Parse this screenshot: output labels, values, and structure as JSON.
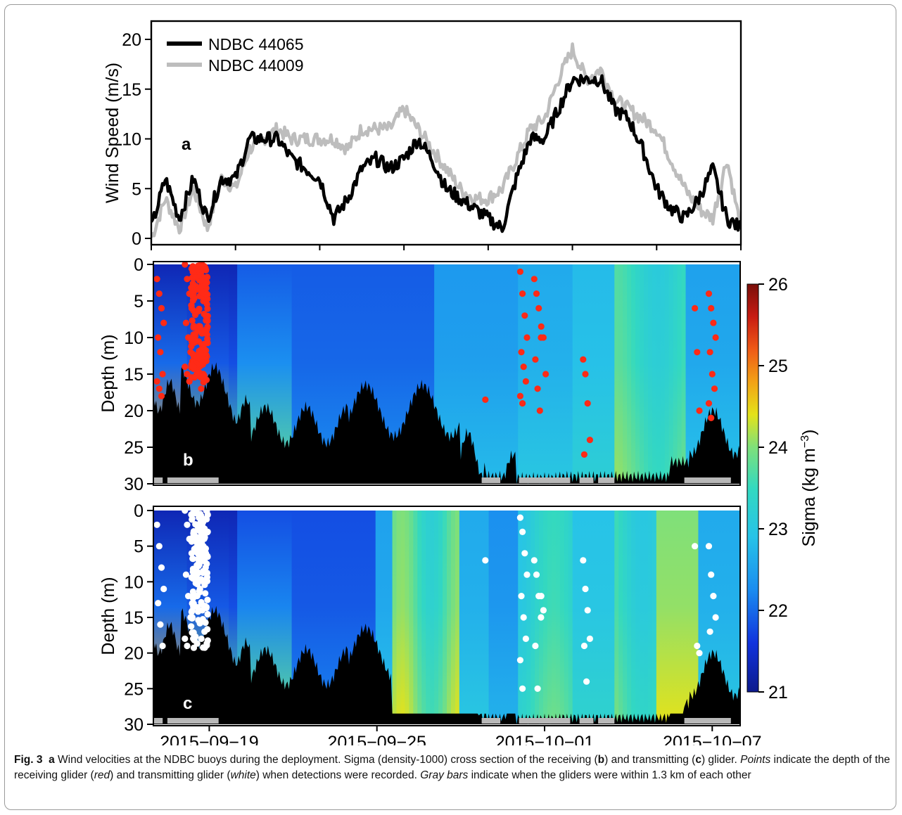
{
  "chart_data": [
    {
      "type": "line",
      "panel_label": "a",
      "ylabel": "Wind Speed (m/s)",
      "ylim": [
        0,
        21
      ],
      "yticks": [
        0,
        5,
        10,
        15,
        20
      ],
      "xlim": [
        "2015-09-17",
        "2015-10-08"
      ],
      "series": [
        {
          "name": "NDBC 44065",
          "color": "#000000",
          "x": [
            "2015-09-17",
            "2015-09-17T12",
            "2015-09-18",
            "2015-09-18T12",
            "2015-09-19",
            "2015-09-19T12",
            "2015-09-20",
            "2015-09-20T12",
            "2015-09-21",
            "2015-09-21T12",
            "2015-09-22",
            "2015-09-22T12",
            "2015-09-23",
            "2015-09-23T12",
            "2015-09-24",
            "2015-09-24T12",
            "2015-09-25",
            "2015-09-25T12",
            "2015-09-26",
            "2015-09-26T12",
            "2015-09-27",
            "2015-09-27T12",
            "2015-09-28",
            "2015-09-28T12",
            "2015-09-29",
            "2015-09-29T12",
            "2015-09-30",
            "2015-09-30T12",
            "2015-10-01",
            "2015-10-01T12",
            "2015-10-02",
            "2015-10-02T12",
            "2015-10-03",
            "2015-10-03T12",
            "2015-10-04",
            "2015-10-04T12",
            "2015-10-05",
            "2015-10-05T12",
            "2015-10-06",
            "2015-10-06T12",
            "2015-10-07",
            "2015-10-07T12",
            "2015-10-08"
          ],
          "values": [
            1,
            6,
            2,
            6,
            2,
            6,
            6,
            10,
            10,
            10,
            8,
            7,
            6,
            2,
            4,
            7,
            8,
            7,
            8,
            10,
            8,
            5,
            4,
            3,
            2,
            1,
            6,
            10,
            10,
            13,
            16,
            16,
            16,
            13,
            12,
            9,
            5,
            3,
            2,
            4,
            7,
            2,
            1
          ]
        },
        {
          "name": "NDBC 44009",
          "color": "#bdbdbd",
          "x": [
            "2015-09-17",
            "2015-09-17T12",
            "2015-09-18",
            "2015-09-18T12",
            "2015-09-19",
            "2015-09-19T12",
            "2015-09-20",
            "2015-09-20T12",
            "2015-09-21",
            "2015-09-21T12",
            "2015-09-22",
            "2015-09-22T12",
            "2015-09-23",
            "2015-09-23T12",
            "2015-09-24",
            "2015-09-24T12",
            "2015-09-25",
            "2015-09-25T12",
            "2015-09-26",
            "2015-09-26T12",
            "2015-09-27",
            "2015-09-27T12",
            "2015-09-28",
            "2015-09-28T12",
            "2015-09-29",
            "2015-09-29T12",
            "2015-09-30",
            "2015-09-30T12",
            "2015-10-01",
            "2015-10-01T12",
            "2015-10-02",
            "2015-10-02T12",
            "2015-10-03",
            "2015-10-03T12",
            "2015-10-04",
            "2015-10-04T12",
            "2015-10-05",
            "2015-10-05T12",
            "2015-10-06",
            "2015-10-06T12",
            "2015-10-07",
            "2015-10-07T12",
            "2015-10-08"
          ],
          "values": [
            0,
            4,
            1,
            5,
            1,
            6,
            5,
            9,
            10,
            11,
            10,
            10,
            10,
            10,
            9,
            11,
            11,
            11,
            13,
            11,
            9,
            7,
            5,
            4,
            4,
            5,
            8,
            11,
            12,
            16,
            19,
            16,
            17,
            14,
            13,
            12,
            11,
            8,
            5,
            3,
            2,
            8,
            1
          ]
        }
      ]
    },
    {
      "type": "heatmap",
      "panel_label": "b",
      "ylabel": "Depth (m)",
      "ylim": [
        30,
        0
      ],
      "yticks": [
        0,
        5,
        10,
        15,
        20,
        25,
        30
      ],
      "xlim": [
        "2015-09-17",
        "2015-10-08"
      ],
      "colorbar": {
        "label": "Sigma (kg m",
        "label_superscript": "−3",
        "label_close": ")",
        "range": [
          21,
          26
        ],
        "ticks": [
          21,
          22,
          23,
          24,
          25,
          26
        ]
      },
      "point_color": "#ff2a16",
      "detection_points": [
        {
          "x": "2015-09-17T06",
          "depth": [
            2,
            4,
            6,
            8,
            10,
            12,
            15,
            16,
            17,
            18
          ]
        },
        {
          "x": "2015-09-18T06",
          "depth": [
            0,
            2,
            4,
            6,
            8,
            10,
            12,
            14,
            15,
            16
          ]
        },
        {
          "x": "2015-09-18T18",
          "depth": [
            1,
            3,
            5,
            7,
            9,
            11,
            13,
            15,
            17
          ]
        },
        {
          "x": "2015-09-29",
          "depth": [
            18.5
          ]
        },
        {
          "x": "2015-09-30T06",
          "depth": [
            1,
            4,
            7,
            10,
            12,
            14,
            16,
            18,
            19
          ]
        },
        {
          "x": "2015-09-30T18",
          "depth": [
            2,
            4,
            6,
            10,
            13,
            17,
            20
          ]
        },
        {
          "x": "2015-10-01",
          "depth": [
            8.5,
            10,
            15
          ]
        },
        {
          "x": "2015-10-02T12",
          "depth": [
            13,
            15,
            19,
            24,
            26
          ]
        },
        {
          "x": "2015-10-06T12",
          "depth": [
            6,
            12,
            20
          ]
        },
        {
          "x": "2015-10-07",
          "depth": [
            4,
            6,
            8,
            10,
            12,
            15,
            17,
            19,
            21
          ]
        }
      ],
      "proximity_bars": [
        [
          "2015-09-17",
          "2015-09-17T08"
        ],
        [
          "2015-09-17T12",
          "2015-09-19T08"
        ],
        [
          "2015-09-28T18",
          "2015-09-29T10"
        ],
        [
          "2015-09-30T02",
          "2015-10-01T22"
        ],
        [
          "2015-10-02T06",
          "2015-10-02T18"
        ],
        [
          "2015-10-02T22",
          "2015-10-03T12"
        ],
        [
          "2015-10-06",
          "2015-10-07T16"
        ]
      ]
    },
    {
      "type": "heatmap",
      "panel_label": "c",
      "ylabel": "Depth (m)",
      "ylim": [
        30,
        0
      ],
      "yticks": [
        0,
        5,
        10,
        15,
        20,
        25,
        30
      ],
      "xticks": [
        "2015−09−19",
        "2015−09−25",
        "2015−10−01",
        "2015−10−07"
      ],
      "xtick_dates": [
        "2015-09-19",
        "2015-09-25",
        "2015-10-01",
        "2015-10-07"
      ],
      "xlim": [
        "2015-09-17",
        "2015-10-08"
      ],
      "point_color": "#ffffff",
      "detection_points": [
        {
          "x": "2015-09-17T06",
          "depth": [
            2,
            5,
            8,
            11,
            13,
            16,
            19
          ]
        },
        {
          "x": "2015-09-18T06",
          "depth": [
            0,
            2,
            4,
            6,
            9,
            12,
            15,
            18,
            19
          ]
        },
        {
          "x": "2015-09-18T18",
          "depth": [
            1,
            3,
            5,
            8,
            11,
            14,
            17
          ]
        },
        {
          "x": "2015-09-29",
          "depth": [
            7
          ]
        },
        {
          "x": "2015-09-30T06",
          "depth": [
            1,
            3,
            6,
            9,
            12,
            15,
            18,
            21,
            25
          ]
        },
        {
          "x": "2015-09-30T18",
          "depth": [
            7,
            9,
            12,
            15,
            19,
            25
          ]
        },
        {
          "x": "2015-10-01",
          "depth": [
            12,
            14
          ]
        },
        {
          "x": "2015-10-02T12",
          "depth": [
            7,
            11,
            14,
            18,
            19,
            24
          ]
        },
        {
          "x": "2015-10-06T12",
          "depth": [
            5,
            19,
            20
          ]
        },
        {
          "x": "2015-10-07",
          "depth": [
            5,
            9,
            12,
            15,
            17
          ]
        }
      ],
      "proximity_bars": [
        [
          "2015-09-17",
          "2015-09-17T08"
        ],
        [
          "2015-09-17T12",
          "2015-09-19T08"
        ],
        [
          "2015-09-28T18",
          "2015-09-29T10"
        ],
        [
          "2015-09-30T02",
          "2015-10-01T22"
        ],
        [
          "2015-10-02T06",
          "2015-10-02T18"
        ],
        [
          "2015-10-02T22",
          "2015-10-03T12"
        ],
        [
          "2015-10-06",
          "2015-10-07T16"
        ]
      ]
    }
  ],
  "caption": {
    "fig_label": "Fig. 3",
    "p1_label": "a",
    "p1": " Wind velocities at the NDBC buoys during the deployment. Sigma (density-1000) cross section of the receiving (",
    "p2_label": "b",
    "p2": ") and transmitting (",
    "p3_label": "c",
    "p3": ") glider. ",
    "points_word": "Points",
    "p4": " indicate the depth of the receiving glider (",
    "red_word": "red",
    "p5": ") and transmitting glider (",
    "white_word": "white",
    "p6": ") when detections were recorded. ",
    "gray_word": "Gray bars",
    "p7": " indicate when the gliders were within 1.3 km of each other"
  }
}
